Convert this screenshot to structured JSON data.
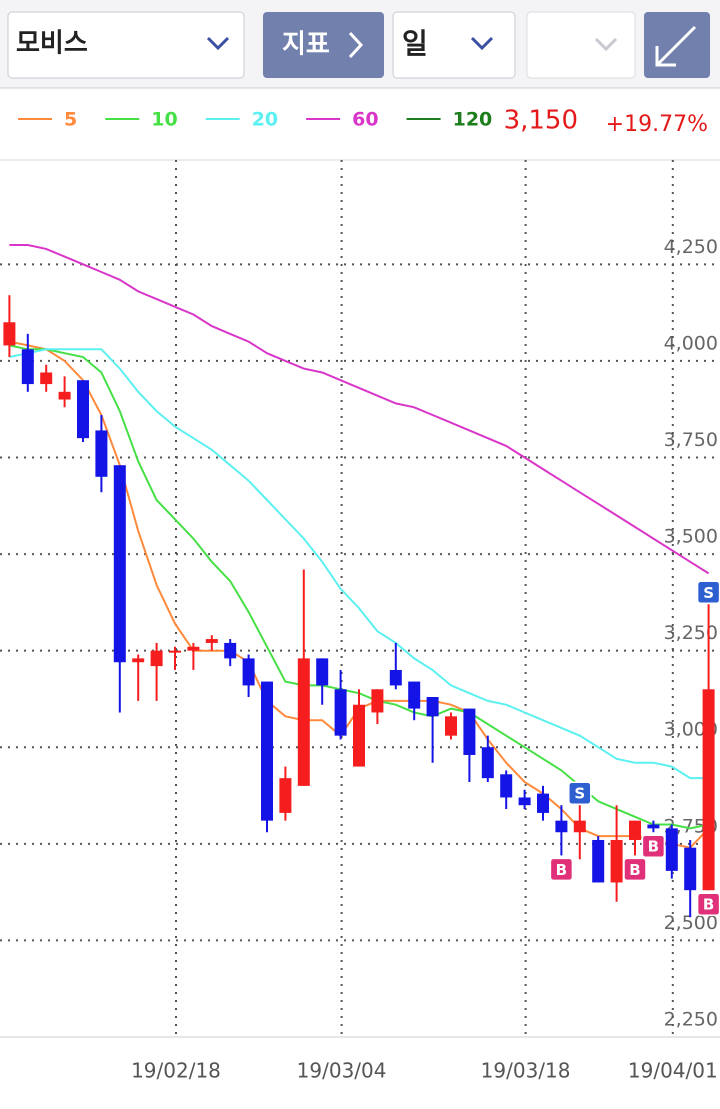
{
  "header": {
    "stock": "모비스",
    "indicator": "지표",
    "period": "일"
  },
  "chart_data": {
    "type": "candlestick",
    "last_price": "3,150",
    "change": "+19.77%",
    "categories": [
      null,
      null,
      null,
      null,
      null,
      null,
      null,
      null,
      null,
      "19/02/18",
      null,
      null,
      null,
      null,
      null,
      null,
      null,
      null,
      "19/03/04",
      null,
      null,
      null,
      null,
      null,
      null,
      null,
      null,
      null,
      "19/03/18",
      null,
      null,
      null,
      null,
      null,
      null,
      null,
      "19/04/01",
      null,
      null
    ],
    "open": [
      4040,
      4030,
      3940,
      3900,
      3950,
      3820,
      3730,
      3220,
      3210,
      3250,
      3250,
      3270,
      3270,
      3230,
      3170,
      2830,
      2900,
      3230,
      3150,
      2950,
      3090,
      3200,
      3170,
      3130,
      3030,
      3100,
      3000,
      2930,
      2870,
      2880,
      2810,
      2780,
      2760,
      2650,
      2760,
      2800,
      2790,
      2740,
      2630
    ],
    "high": [
      4170,
      4070,
      3990,
      3960,
      3950,
      3860,
      3730,
      3240,
      3270,
      3260,
      3270,
      3290,
      3280,
      3240,
      3170,
      2950,
      3460,
      3230,
      3200,
      3150,
      3150,
      3270,
      3170,
      3130,
      3090,
      3100,
      3030,
      2940,
      2890,
      2900,
      2850,
      2850,
      2770,
      2850,
      2810,
      2810,
      2800,
      2760,
      3370
    ],
    "low": [
      4010,
      3920,
      3920,
      3880,
      3790,
      3660,
      3090,
      3120,
      3120,
      3200,
      3200,
      3250,
      3210,
      3130,
      2780,
      2810,
      2900,
      3110,
      3020,
      2950,
      3060,
      3150,
      3070,
      2960,
      3020,
      2910,
      2910,
      2840,
      2840,
      2810,
      2720,
      2710,
      2650,
      2600,
      2720,
      2780,
      2660,
      2560,
      2630
    ],
    "close": [
      4100,
      3940,
      3970,
      3920,
      3800,
      3700,
      3220,
      3230,
      3250,
      3250,
      3260,
      3280,
      3230,
      3160,
      2810,
      2920,
      3230,
      3160,
      3030,
      3110,
      3150,
      3160,
      3100,
      3080,
      3080,
      2980,
      2920,
      2870,
      2850,
      2830,
      2780,
      2810,
      2650,
      2760,
      2810,
      2790,
      2680,
      2630,
      3150
    ],
    "up_color": "#f51d1d",
    "down_color": "#1414e6",
    "series": [
      {
        "name": "5",
        "color": "#ff8a3c",
        "values": [
          4050,
          4040,
          4030,
          4000,
          3950,
          3860,
          3730,
          3560,
          3420,
          3320,
          3250,
          3250,
          3250,
          3220,
          3120,
          3080,
          3070,
          3070,
          3030,
          3100,
          3120,
          3120,
          3120,
          3120,
          3110,
          3090,
          3020,
          2960,
          2910,
          2880,
          2840,
          2790,
          2770,
          2770,
          2770,
          2760,
          2750,
          2740,
          2790
        ]
      },
      {
        "name": "10",
        "color": "#46e046",
        "values": [
          4040,
          4030,
          4030,
          4020,
          4010,
          3970,
          3870,
          3740,
          3640,
          3590,
          3540,
          3480,
          3430,
          3350,
          3260,
          3170,
          3160,
          3160,
          3150,
          3140,
          3120,
          3110,
          3090,
          3080,
          3100,
          3090,
          3060,
          3030,
          3000,
          2970,
          2940,
          2900,
          2860,
          2840,
          2820,
          2800,
          2800,
          2790,
          2800
        ]
      },
      {
        "name": "20",
        "color": "#5cf0f0",
        "values": [
          4010,
          4020,
          4030,
          4030,
          4030,
          4030,
          3980,
          3920,
          3870,
          3830,
          3800,
          3770,
          3730,
          3690,
          3640,
          3590,
          3540,
          3480,
          3410,
          3360,
          3300,
          3270,
          3230,
          3200,
          3160,
          3140,
          3120,
          3110,
          3090,
          3070,
          3050,
          3030,
          3000,
          2970,
          2960,
          2960,
          2950,
          2920,
          2920
        ]
      },
      {
        "name": "60",
        "color": "#d936c9",
        "values": [
          4300,
          4300,
          4290,
          4270,
          4250,
          4230,
          4210,
          4180,
          4160,
          4140,
          4120,
          4090,
          4070,
          4050,
          4020,
          4000,
          3980,
          3970,
          3950,
          3930,
          3910,
          3890,
          3880,
          3860,
          3840,
          3820,
          3800,
          3780,
          3750,
          3720,
          3690,
          3660,
          3630,
          3600,
          3570,
          3540,
          3510,
          3480,
          3450
        ]
      },
      {
        "name": "120",
        "color": "#1b7d1b",
        "values": [
          null,
          null,
          null,
          null,
          null,
          null,
          null,
          null,
          null,
          null,
          null,
          null,
          null,
          null,
          null,
          null,
          null,
          null,
          null,
          null,
          null,
          null,
          null,
          null,
          null,
          null,
          null,
          null,
          null,
          null,
          null,
          null,
          null,
          null,
          null,
          null,
          null,
          null,
          null
        ]
      }
    ],
    "signals": [
      {
        "index": 30,
        "label": "B"
      },
      {
        "index": 31,
        "label": "S"
      },
      {
        "index": 34,
        "label": "B"
      },
      {
        "index": 35,
        "label": "B"
      },
      {
        "index": 38,
        "label": "S"
      },
      {
        "index": 38,
        "label": "B"
      }
    ],
    "ylim": [
      2250,
      4520
    ],
    "yticks": [
      {
        "value": 2250,
        "label": "2,250"
      },
      {
        "value": 2500,
        "label": "2,500"
      },
      {
        "value": 2750,
        "label": "2,750"
      },
      {
        "value": 3000,
        "label": "3,000"
      },
      {
        "value": 3250,
        "label": "3,250"
      },
      {
        "value": 3500,
        "label": "3,500"
      },
      {
        "value": 3750,
        "label": "3,750"
      },
      {
        "value": 4000,
        "label": "4,000"
      },
      {
        "value": 4250,
        "label": "4,250"
      }
    ],
    "grid": true
  }
}
